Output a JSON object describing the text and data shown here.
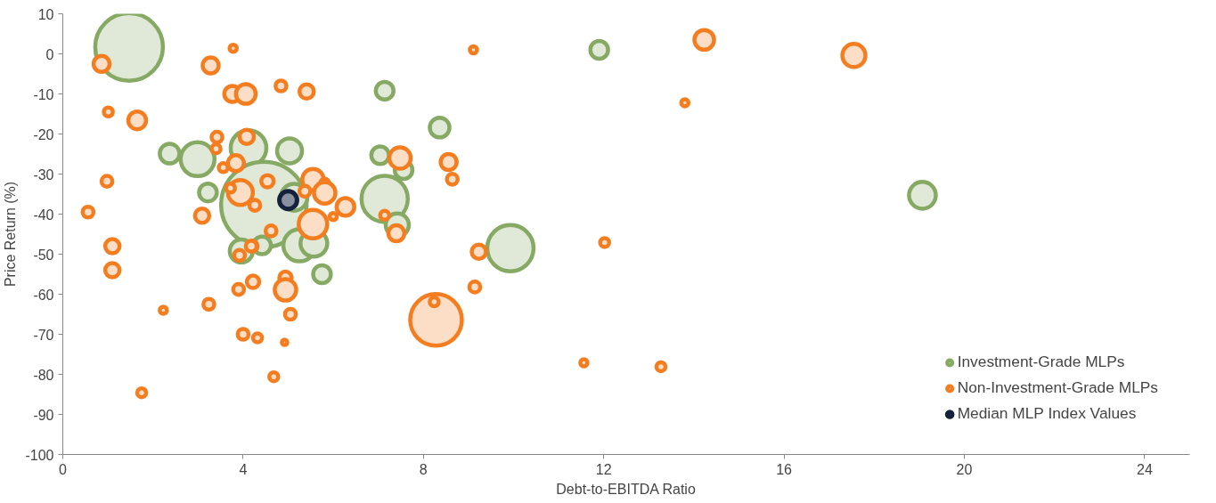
{
  "chart_data": {
    "type": "bubble",
    "xlabel": "Debt-to-EBITDA Ratio",
    "ylabel": "Price Return (%)",
    "xlim": [
      0,
      25
    ],
    "xticks": [
      0,
      4,
      8,
      12,
      16,
      20,
      24
    ],
    "ylim": [
      -100,
      10
    ],
    "yticks": [
      -100,
      -90,
      -80,
      -70,
      -60,
      -50,
      -40,
      -30,
      -20,
      -10,
      0,
      10
    ],
    "grid": false,
    "legend": "bottom right",
    "marker": "circle",
    "series": [
      {
        "name": "Investment-Grade MLPs",
        "color": "#86a964",
        "x": [
          1.47,
          11.9,
          7.14,
          8.36,
          2.37,
          2.99,
          4.12,
          5.03,
          7.04,
          7.56,
          3.22,
          4.46,
          5.13,
          7.14,
          7.42,
          3.96,
          4.42,
          5.25,
          5.57,
          5.75,
          19.07,
          9.93
        ],
        "values": [
          1.7,
          1.0,
          -9.2,
          -18.4,
          -24.9,
          -26.3,
          -23.5,
          -24.2,
          -25.3,
          -29.0,
          -34.6,
          -37.6,
          -35.8,
          -36.2,
          -42.7,
          -49.2,
          -47.8,
          -47.8,
          -47.3,
          -55.0,
          -35.3,
          -48.5
        ],
        "sizes": [
          0.627,
          0.043,
          0.043,
          0.053,
          0.053,
          0.157,
          0.174,
          0.085,
          0.043,
          0.043,
          0.043,
          1,
          0.098,
          0.293,
          0.073,
          0.073,
          0.043,
          0.141,
          0.098,
          0.043,
          0.098,
          0.293
        ]
      },
      {
        "name": "Non-Investment-Grade MLPs",
        "color": "#f47d20",
        "x": [
          0.86,
          3.28,
          3.78,
          3.76,
          4.06,
          4.84,
          5.41,
          1.01,
          1.65,
          3.42,
          4.08,
          3.4,
          3.56,
          3.84,
          3.94,
          4.26,
          3.72,
          4.54,
          5.55,
          5.81,
          5.81,
          5.37,
          6.27,
          6.0,
          5.55,
          7.14,
          7.48,
          8.56,
          8.64,
          7.4,
          4.62,
          4.2,
          0.56,
          0.98,
          1.1,
          1.1,
          2.23,
          3.24,
          3.9,
          4.22,
          3.92,
          4.94,
          4.94,
          5.05,
          4.0,
          4.32,
          4.92,
          4.68,
          1.75,
          4.18,
          3.09,
          9.11,
          14.23,
          17.55,
          13.8,
          9.23,
          9.14,
          8.28,
          8.24,
          12.02,
          11.56,
          13.27
        ],
        "values": [
          -2.5,
          -2.9,
          1.4,
          -10,
          -10,
          -8,
          -9.4,
          -14.5,
          -16.6,
          -20.8,
          -20.7,
          -23.7,
          -28.4,
          -27.3,
          -34.6,
          -37.8,
          -33.5,
          -31.8,
          -31.4,
          -32.3,
          -34.7,
          -34.3,
          -38.2,
          -40.6,
          -42.5,
          -40.3,
          -26.0,
          -27.0,
          -31.3,
          -44.8,
          -44.2,
          -48,
          -39.5,
          -31.8,
          -48,
          -54,
          -64,
          -62.5,
          -58.8,
          -56.9,
          -50.3,
          -55.9,
          -58.9,
          -65,
          -70,
          -70.9,
          -72,
          -80.6,
          -84.6,
          -48,
          -40.4,
          1.0,
          3.5,
          -0.4,
          -12.2,
          -49.4,
          -58.2,
          -66.4,
          -61.9,
          -47.1,
          -77.1,
          -78.1
        ],
        "sizes": [
          0.035,
          0.035,
          0.007,
          0.035,
          0.053,
          0.016,
          0.028,
          0.011,
          0.043,
          0.016,
          0.028,
          0.011,
          0.011,
          0.035,
          0.085,
          0.016,
          0.011,
          0.021,
          0.063,
          0.011,
          0.063,
          0.016,
          0.043,
          0.007,
          0.111,
          0.011,
          0.063,
          0.035,
          0.016,
          0.035,
          0.016,
          0.016,
          0.016,
          0.016,
          0.028,
          0.028,
          0.007,
          0.016,
          0.016,
          0.021,
          0.016,
          0.021,
          0.063,
          0.016,
          0.016,
          0.011,
          0.004,
          0.011,
          0.011,
          0.016,
          0.028,
          0.007,
          0.053,
          0.073,
          0.007,
          0.028,
          0.016,
          0.365,
          0.011,
          0.011,
          0.007,
          0.011
        ]
      },
      {
        "name": "Median MLP Index Values",
        "color": "#14213d",
        "x": [
          5.0
        ],
        "values": [
          -36.5
        ],
        "sizes": [
          0.043
        ]
      }
    ]
  }
}
